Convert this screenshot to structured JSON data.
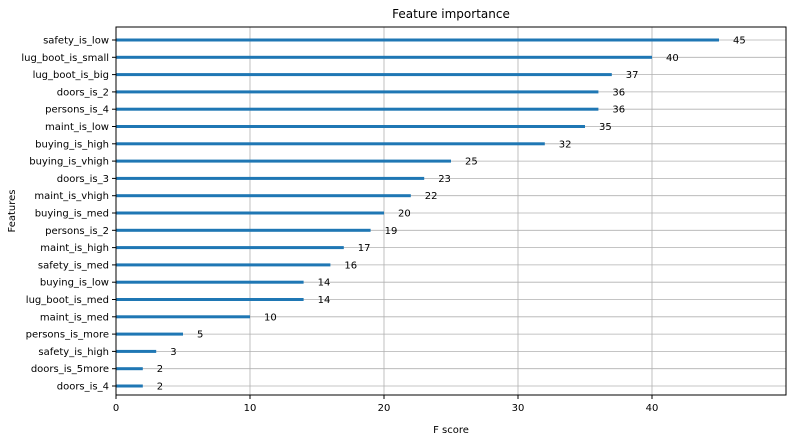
{
  "chart_data": {
    "type": "bar",
    "orientation": "horizontal",
    "title": "Feature importance",
    "xlabel": "F score",
    "ylabel": "Features",
    "xlim": [
      0,
      50
    ],
    "xticks": [
      0,
      10,
      20,
      30,
      40
    ],
    "grid": true,
    "bar_color": "#1f77b4",
    "categories": [
      "safety_is_low",
      "lug_boot_is_small",
      "lug_boot_is_big",
      "doors_is_2",
      "persons_is_4",
      "maint_is_low",
      "buying_is_high",
      "buying_is_vhigh",
      "doors_is_3",
      "maint_is_vhigh",
      "buying_is_med",
      "persons_is_2",
      "maint_is_high",
      "safety_is_med",
      "buying_is_low",
      "lug_boot_is_med",
      "maint_is_med",
      "persons_is_more",
      "safety_is_high",
      "doors_is_5more",
      "doors_is_4"
    ],
    "values": [
      45,
      40,
      37,
      36,
      36,
      35,
      32,
      25,
      23,
      22,
      20,
      19,
      17,
      16,
      14,
      14,
      10,
      5,
      3,
      2,
      2
    ]
  }
}
